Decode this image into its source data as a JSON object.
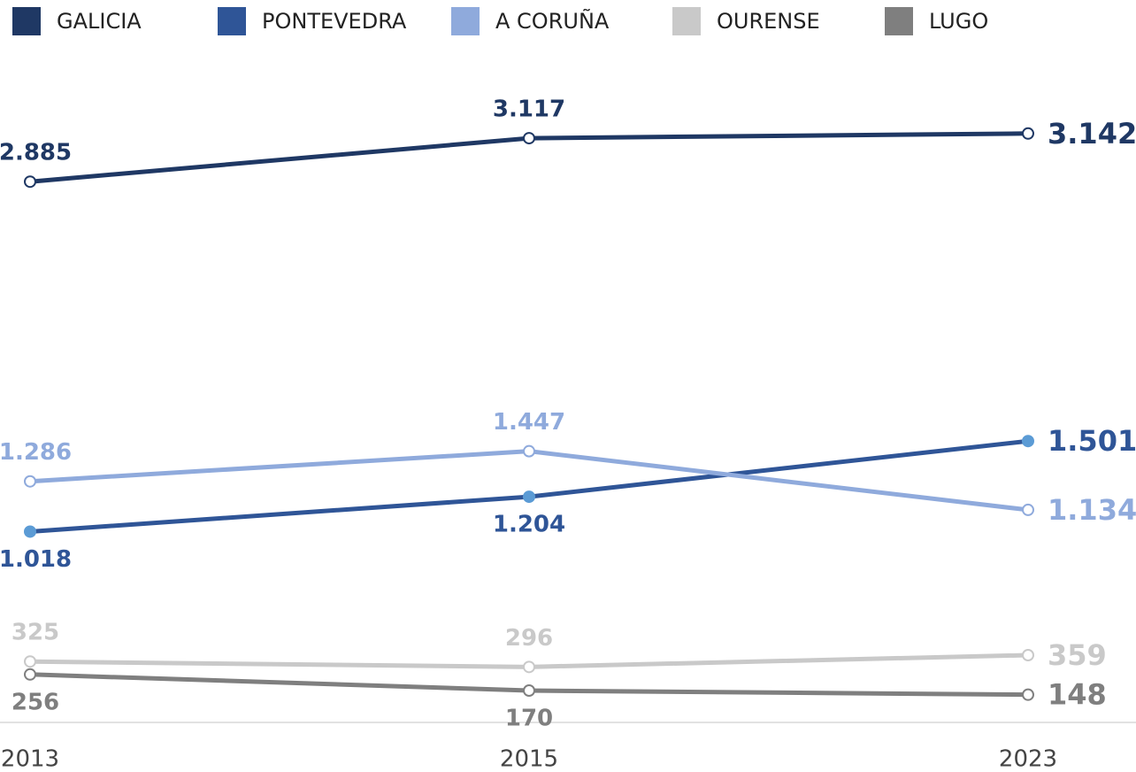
{
  "chart_data": {
    "type": "line",
    "categories": [
      "2013",
      "2015",
      "2023"
    ],
    "ylim": [
      0,
      3500
    ],
    "series": [
      {
        "name": "GALICIA",
        "color": "#1f3864",
        "marker_fill": "#ffffff",
        "values": [
          2885,
          3117,
          3142
        ],
        "value_labels": [
          "2.885",
          "3.117",
          "3.142"
        ]
      },
      {
        "name": "PONTEVEDRA",
        "color": "#2f5597",
        "marker_fill": "#5b9bd5",
        "values": [
          1018,
          1204,
          1501
        ],
        "value_labels": [
          "1.018",
          "1.204",
          "1.501"
        ]
      },
      {
        "name": "A CORUÑA",
        "color": "#8faadc",
        "marker_fill": "#ffffff",
        "values": [
          1286,
          1447,
          1134
        ],
        "value_labels": [
          "1.286",
          "1.447",
          "1.134"
        ]
      },
      {
        "name": "OURENSE",
        "color": "#c9c9c9",
        "marker_fill": "#ffffff",
        "values": [
          325,
          296,
          359
        ]
      },
      {
        "name": "LUGO",
        "color": "#7f7f7f",
        "marker_fill": "#ffffff",
        "values": [
          256,
          170,
          148
        ]
      }
    ]
  }
}
